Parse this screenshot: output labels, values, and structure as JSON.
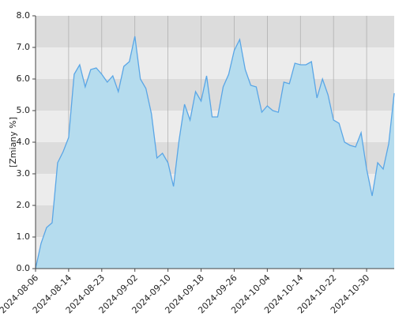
{
  "chart_data": {
    "type": "area",
    "ylabel": "[Zmiany %]",
    "categories": [
      "2024-08-06",
      null,
      null,
      null,
      null,
      null,
      "2024-08-14",
      null,
      null,
      null,
      null,
      null,
      "2024-08-23",
      null,
      null,
      null,
      null,
      null,
      "2024-09-02",
      null,
      null,
      null,
      null,
      null,
      "2024-09-10",
      null,
      null,
      null,
      null,
      null,
      "2024-09-18",
      null,
      null,
      null,
      null,
      null,
      "2024-09-26",
      null,
      null,
      null,
      null,
      null,
      "2024-10-04",
      null,
      null,
      null,
      null,
      null,
      "2024-10-14",
      null,
      null,
      null,
      null,
      null,
      "2024-10-22",
      null,
      null,
      null,
      null,
      null,
      "2024-10-30",
      null,
      null,
      null,
      null,
      null
    ],
    "values": [
      0.0,
      0.8,
      1.3,
      1.45,
      3.35,
      3.7,
      4.15,
      6.15,
      6.45,
      5.75,
      6.3,
      6.35,
      6.15,
      5.9,
      6.1,
      5.6,
      6.4,
      6.55,
      7.35,
      6.0,
      5.7,
      4.9,
      3.5,
      3.65,
      3.35,
      2.6,
      4.05,
      5.2,
      4.7,
      5.6,
      5.3,
      6.1,
      4.8,
      4.8,
      5.75,
      6.15,
      6.9,
      7.25,
      6.3,
      5.8,
      5.75,
      4.95,
      5.15,
      5.0,
      4.95,
      5.9,
      5.85,
      6.5,
      6.45,
      6.45,
      6.55,
      5.4,
      6.0,
      5.5,
      4.7,
      4.6,
      4.0,
      3.9,
      3.85,
      4.3,
      3.15,
      2.3,
      3.35,
      3.15,
      3.95,
      5.55
    ],
    "color": "#5aa6e6",
    "fill_color": "#b5dcee",
    "ylim": [
      0,
      8
    ],
    "yticks": [
      {
        "value": 0,
        "label": "0.0"
      },
      {
        "value": 1,
        "label": "1.0"
      },
      {
        "value": 2,
        "label": "2.0"
      },
      {
        "value": 3,
        "label": "3.0"
      },
      {
        "value": 4,
        "label": "4.0"
      },
      {
        "value": 5,
        "label": "5.0"
      },
      {
        "value": 6,
        "label": "6.0"
      },
      {
        "value": 7,
        "label": "7.0"
      },
      {
        "value": 8,
        "label": "8.0"
      }
    ],
    "band_colors": [
      "#ececec",
      "#dcdcdc"
    ],
    "xgrid": true
  }
}
